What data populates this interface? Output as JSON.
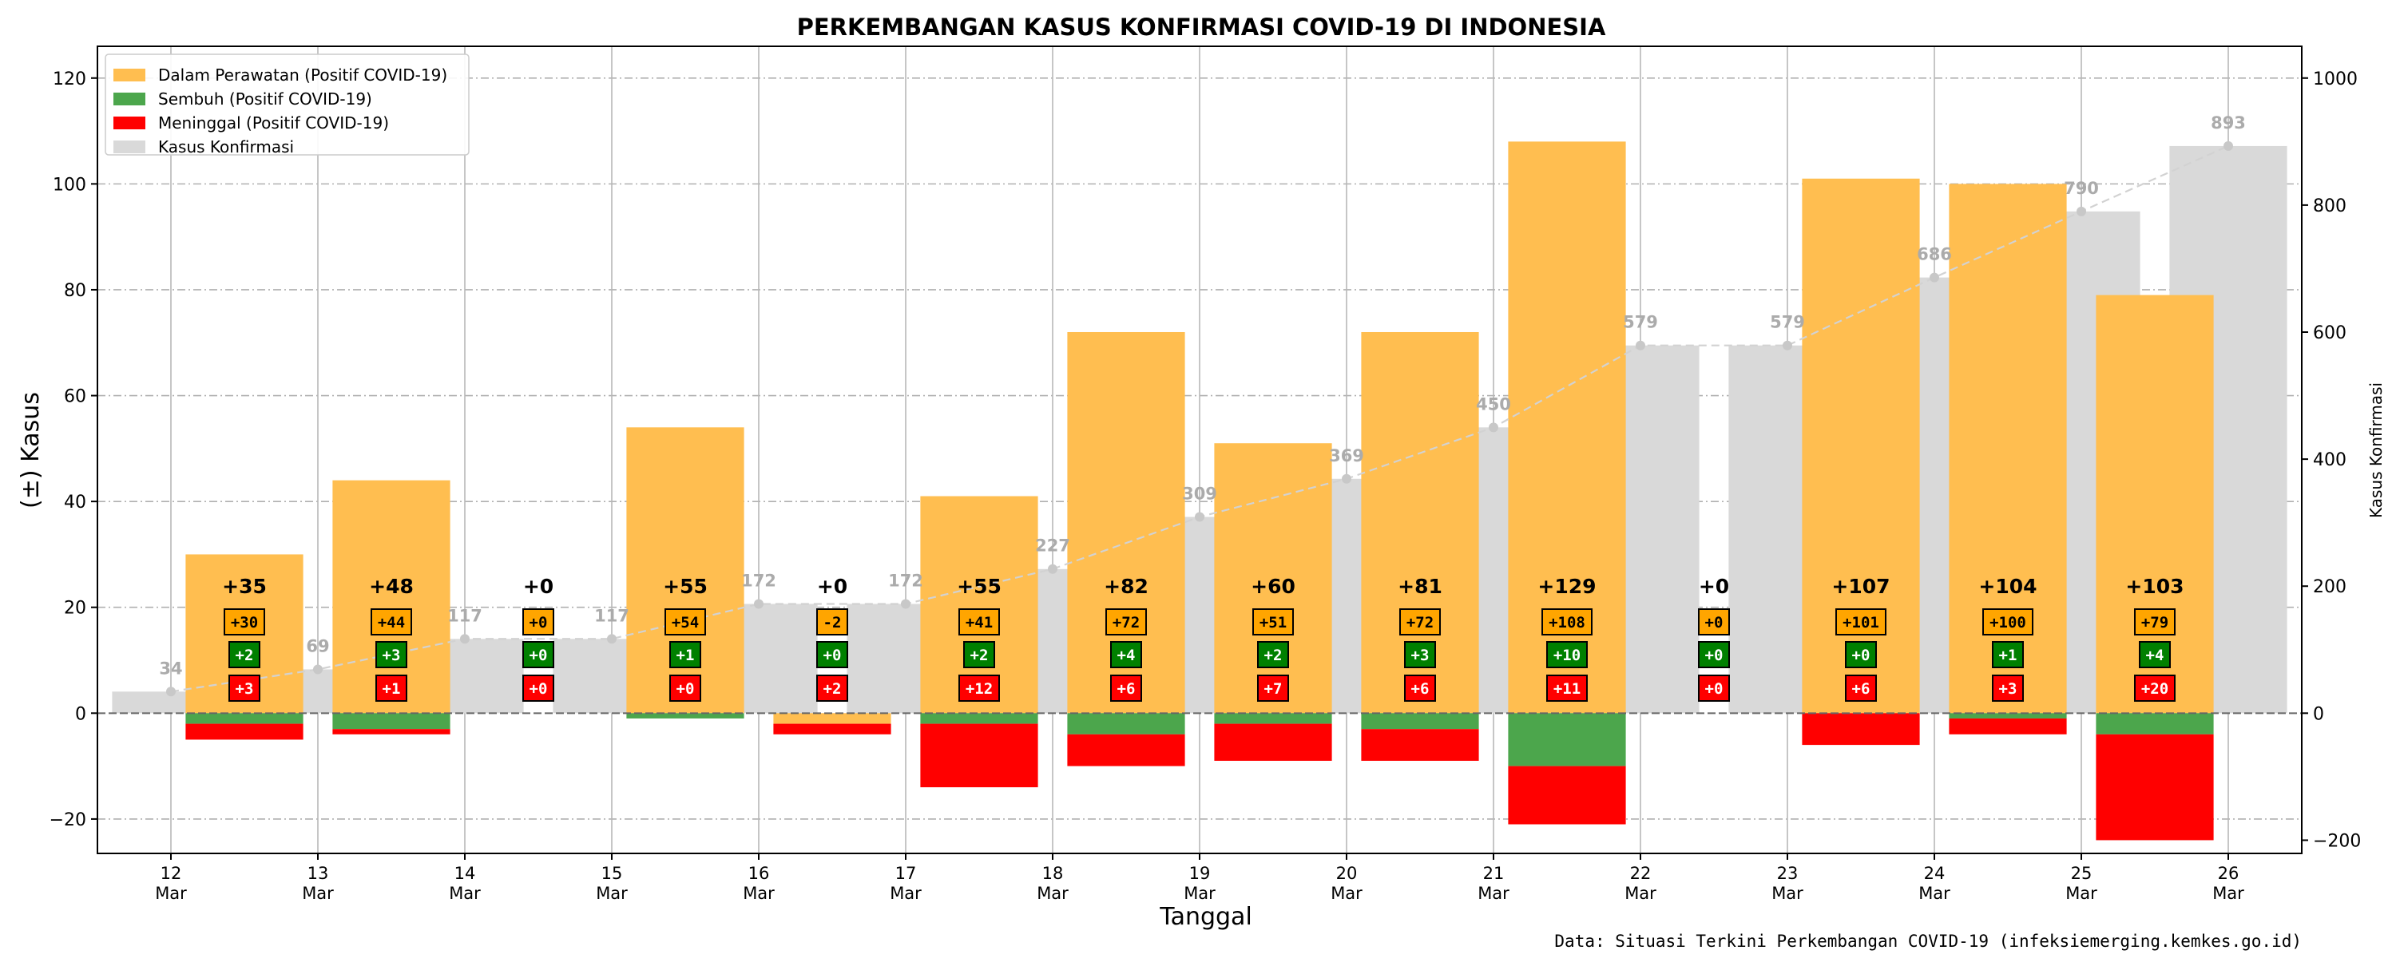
{
  "chart_data": {
    "type": "bar",
    "title": "PERKEMBANGAN KASUS KONFIRMASI COVID-19 DI INDONESIA",
    "xlabel": "Tanggal",
    "ylabel": "(±) Kasus",
    "y2label": "Kasus Konfirmasi",
    "source": "Data: Situasi Terkini Perkembangan COVID-19 (infeksiemerging.kemkes.go.id)",
    "ylim": [
      -26.5,
      126
    ],
    "y2lim": [
      -220.8,
      1050
    ],
    "yticks": [
      -20,
      0,
      20,
      40,
      60,
      80,
      100,
      120
    ],
    "y2ticks": [
      -200,
      0,
      200,
      400,
      600,
      800,
      1000
    ],
    "grid": true,
    "legend_position": "top-left",
    "colors": {
      "perawatan": "#FFBE50",
      "sembuh": "#4CA64C",
      "meninggal": "#FF0000",
      "konfirmasi": "#D9D9D9",
      "konfirmasi_label": "#ABABAB",
      "total_label_box": "#FFA500",
      "sembuh_box": "#008000",
      "meninggal_box": "#FF0000"
    },
    "legend": [
      {
        "label": "Dalam Perawatan (Positif COVID-19)",
        "color": "#FFBE50"
      },
      {
        "label": "Sembuh (Positif COVID-19)",
        "color": "#4CA64C"
      },
      {
        "label": "Meninggal (Positif COVID-19)",
        "color": "#FF0000"
      },
      {
        "label": "Kasus Konfirmasi",
        "color": "#D9D9D9"
      }
    ],
    "dates": [
      {
        "day": "12",
        "month": "Mar"
      },
      {
        "day": "13",
        "month": "Mar"
      },
      {
        "day": "14",
        "month": "Mar"
      },
      {
        "day": "15",
        "month": "Mar"
      },
      {
        "day": "16",
        "month": "Mar"
      },
      {
        "day": "17",
        "month": "Mar"
      },
      {
        "day": "18",
        "month": "Mar"
      },
      {
        "day": "19",
        "month": "Mar"
      },
      {
        "day": "20",
        "month": "Mar"
      },
      {
        "day": "21",
        "month": "Mar"
      },
      {
        "day": "22",
        "month": "Mar"
      },
      {
        "day": "23",
        "month": "Mar"
      },
      {
        "day": "24",
        "month": "Mar"
      },
      {
        "day": "25",
        "month": "Mar"
      },
      {
        "day": "26",
        "month": "Mar"
      }
    ],
    "kasus_konfirmasi": [
      34,
      69,
      117,
      117,
      172,
      172,
      227,
      309,
      369,
      450,
      579,
      579,
      686,
      790,
      893
    ],
    "daily_changes": [
      {
        "perawatan": 30,
        "sembuh": 2,
        "meninggal": 3,
        "total_label": "+35",
        "perawatan_label": "+30",
        "sembuh_label": "+2",
        "meninggal_label": "+3"
      },
      {
        "perawatan": 44,
        "sembuh": 3,
        "meninggal": 1,
        "total_label": "+48",
        "perawatan_label": "+44",
        "sembuh_label": "+3",
        "meninggal_label": "+1"
      },
      {
        "perawatan": 0,
        "sembuh": 0,
        "meninggal": 0,
        "total_label": "+0",
        "perawatan_label": "+0",
        "sembuh_label": "+0",
        "meninggal_label": "+0"
      },
      {
        "perawatan": 54,
        "sembuh": 1,
        "meninggal": 0,
        "total_label": "+55",
        "perawatan_label": "+54",
        "sembuh_label": "+1",
        "meninggal_label": "+0"
      },
      {
        "perawatan": -2,
        "sembuh": 0,
        "meninggal": 2,
        "total_label": "+0",
        "perawatan_label": "-2",
        "sembuh_label": "+0",
        "meninggal_label": "+2"
      },
      {
        "perawatan": 41,
        "sembuh": 2,
        "meninggal": 12,
        "total_label": "+55",
        "perawatan_label": "+41",
        "sembuh_label": "+2",
        "meninggal_label": "+12"
      },
      {
        "perawatan": 72,
        "sembuh": 4,
        "meninggal": 6,
        "total_label": "+82",
        "perawatan_label": "+72",
        "sembuh_label": "+4",
        "meninggal_label": "+6"
      },
      {
        "perawatan": 51,
        "sembuh": 2,
        "meninggal": 7,
        "total_label": "+60",
        "perawatan_label": "+51",
        "sembuh_label": "+2",
        "meninggal_label": "+7"
      },
      {
        "perawatan": 72,
        "sembuh": 3,
        "meninggal": 6,
        "total_label": "+81",
        "perawatan_label": "+72",
        "sembuh_label": "+3",
        "meninggal_label": "+6"
      },
      {
        "perawatan": 108,
        "sembuh": 10,
        "meninggal": 11,
        "total_label": "+129",
        "perawatan_label": "+108",
        "sembuh_label": "+10",
        "meninggal_label": "+11"
      },
      {
        "perawatan": 0,
        "sembuh": 0,
        "meninggal": 0,
        "total_label": "+0",
        "perawatan_label": "+0",
        "sembuh_label": "+0",
        "meninggal_label": "+0"
      },
      {
        "perawatan": 101,
        "sembuh": 0,
        "meninggal": 6,
        "total_label": "+107",
        "perawatan_label": "+101",
        "sembuh_label": "+0",
        "meninggal_label": "+6"
      },
      {
        "perawatan": 100,
        "sembuh": 1,
        "meninggal": 3,
        "total_label": "+104",
        "perawatan_label": "+100",
        "sembuh_label": "+1",
        "meninggal_label": "+3"
      },
      {
        "perawatan": 79,
        "sembuh": 4,
        "meninggal": 20,
        "total_label": "+103",
        "perawatan_label": "+79",
        "sembuh_label": "+4",
        "meninggal_label": "+20"
      }
    ]
  }
}
